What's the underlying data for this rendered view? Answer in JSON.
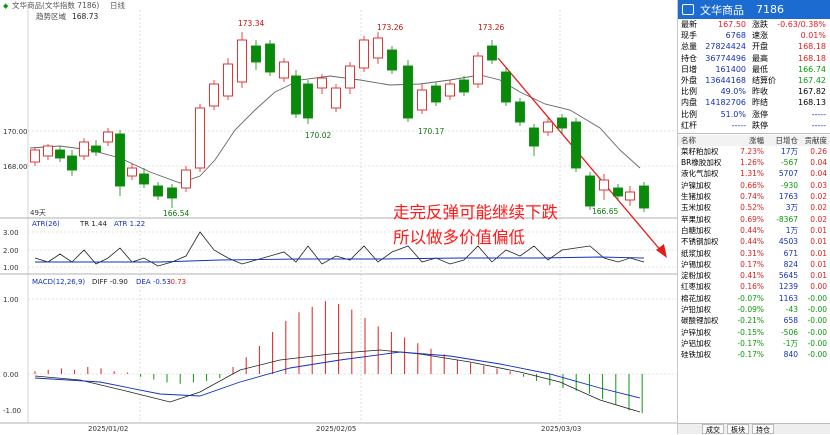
{
  "title_bar": {
    "name": "文华商品(文华指数 7186)",
    "period": "日线"
  },
  "legend": {
    "label": "趋势区域",
    "value": "168.73"
  },
  "price_axis": [
    "170.00",
    "168.00"
  ],
  "price_labels": {
    "h1": "173.34",
    "h2": "173.26",
    "h3": "173.26",
    "l1": "170.02",
    "l2": "170.17",
    "l3": "166.54",
    "l4": "166.65"
  },
  "vol_label": "49天",
  "atr": {
    "title": "ATR(26)",
    "tr": "TR 1.44",
    "atr": "ATR 1.22",
    "ticks": [
      "3.00",
      "2.00",
      "1.00"
    ]
  },
  "macd": {
    "title": "MACD(12,26,9)",
    "diff": "DIFF -0.90",
    "dea": "DEA -0.53",
    "macd": "-0.73",
    "ticks": [
      "1.00",
      "0.00",
      "-1.00"
    ]
  },
  "dates": [
    "2025/01/02",
    "2025/02/05",
    "2025/03/03"
  ],
  "annotation": [
    "走完反弹可能继续下跌",
    "所以做多价值偏低"
  ],
  "panel": {
    "name": "文华商品",
    "code": "7186",
    "quotes": [
      [
        "最新",
        "167.50",
        "red",
        "涨跌",
        "-0.63/0.38%",
        "red"
      ],
      [
        "现手",
        "6768",
        "blu",
        "速涨",
        "0.01%",
        "red"
      ],
      [
        "总量",
        "27824424",
        "blu",
        "开盘",
        "168.18",
        "red"
      ],
      [
        "持仓",
        "36774496",
        "blu",
        "最高",
        "168.18",
        "red"
      ],
      [
        "日增",
        "161400",
        "blu",
        "最低",
        "166.74",
        "grn"
      ],
      [
        "外盘",
        "13644168",
        "blu",
        "结算价",
        "167.42",
        "grn"
      ],
      [
        "比例",
        "49.0%",
        "blu",
        "昨收",
        "167.82",
        "blk"
      ],
      [
        "内盘",
        "14182706",
        "blu",
        "昨结",
        "168.13",
        "blk"
      ],
      [
        "比例",
        "51.0%",
        "blu",
        "涨停",
        "-----",
        "blu"
      ],
      [
        "红杆",
        "-----",
        "blu",
        "跌停",
        "-----",
        "blu"
      ]
    ],
    "list_header": [
      "名称",
      "涨幅",
      "日增仓",
      "贡献度"
    ],
    "list": [
      [
        "菜籽粕加权",
        "7.23%",
        "red",
        "17万",
        "0.26"
      ],
      [
        "BR橡胶加权",
        "1.26%",
        "red",
        "-567",
        "0.04"
      ],
      [
        "液化气加权",
        "1.31%",
        "red",
        "5707",
        "0.04"
      ],
      [
        "沪镍加权",
        "0.66%",
        "red",
        "-930",
        "0.03"
      ],
      [
        "生猪加权",
        "0.74%",
        "red",
        "1763",
        "0.02"
      ],
      [
        "玉米加权",
        "0.52%",
        "red",
        "3万",
        "0.02"
      ],
      [
        "苹果加权",
        "0.69%",
        "red",
        "-8367",
        "0.02"
      ],
      [
        "白糖加权",
        "0.44%",
        "red",
        "1万",
        "0.01"
      ],
      [
        "不锈钢加权",
        "0.44%",
        "red",
        "4503",
        "0.01"
      ],
      [
        "纸浆加权",
        "0.31%",
        "red",
        "671",
        "0.01"
      ],
      [
        "沪锡加权",
        "0.17%",
        "red",
        "824",
        "0.01"
      ],
      [
        "淀粉加权",
        "0.41%",
        "red",
        "5645",
        "0.01"
      ],
      [
        "红枣加权",
        "0.16%",
        "red",
        "1239",
        "0.00"
      ],
      [
        "棉花加权",
        "-0.07%",
        "grn",
        "1163",
        "-0.00"
      ],
      [
        "沪铅加权",
        "-0.09%",
        "grn",
        "-43",
        "-0.00"
      ],
      [
        "碳酸锂加权",
        "-0.21%",
        "grn",
        "658",
        "-0.00"
      ],
      [
        "沪锌加权",
        "-0.15%",
        "grn",
        "-506",
        "-0.00"
      ],
      [
        "沪铝加权",
        "-0.17%",
        "grn",
        "-1万",
        "-0.00"
      ],
      [
        "硅铁加权",
        "-0.17%",
        "grn",
        "840",
        "-0.00"
      ]
    ],
    "tabs": [
      "成交",
      "板块",
      "持仓"
    ]
  }
}
